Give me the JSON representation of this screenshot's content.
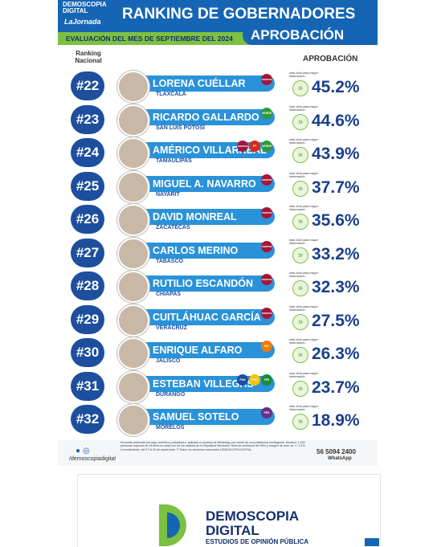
{
  "header": {
    "brand": "DEMOSCOPIA DIGITAL",
    "partner": "LaJornada",
    "title": "RANKING DE GOBERNADORES",
    "subtitle": "EVALUACIÓN DEL MES DE SEPTIEMBRE DEL 2024",
    "metric": "APROBACIÓN"
  },
  "columns": {
    "rank": "Ranking Nacional",
    "approval": "APROBACIÓN"
  },
  "click_hint": "más click para mayor información",
  "rows": [
    {
      "rank": "#22",
      "name": "LORENA CUÉLLAR",
      "state": "TLAXCALA",
      "parties": [
        "morena"
      ],
      "approval": "45.2%"
    },
    {
      "rank": "#23",
      "name": "RICARDO GALLARDO",
      "state": "SAN LUIS POTOSÍ",
      "parties": [
        "VERDE"
      ],
      "approval": "44.6%"
    },
    {
      "rank": "#24",
      "name": "AMÉRICO VILLARREAL",
      "state": "TAMAULIPAS",
      "parties": [
        "morena",
        "PT",
        "VERDE"
      ],
      "approval": "43.9%"
    },
    {
      "rank": "#25",
      "name": "MIGUEL A. NAVARRO",
      "state": "NAYARIT",
      "parties": [
        "morena"
      ],
      "approval": "37.7%"
    },
    {
      "rank": "#26",
      "name": "DAVID MONREAL",
      "state": "ZACATECAS",
      "parties": [
        "morena"
      ],
      "approval": "35.6%"
    },
    {
      "rank": "#27",
      "name": "CARLOS MERINO",
      "state": "TABASCO",
      "parties": [
        "morena"
      ],
      "approval": "33.2%"
    },
    {
      "rank": "#28",
      "name": "RUTILIO ESCANDÓN",
      "state": "CHIAPAS",
      "parties": [
        "morena"
      ],
      "approval": "32.3%"
    },
    {
      "rank": "#29",
      "name": "CUITLÁHUAC GARCÍA",
      "state": "VERACRUZ",
      "parties": [
        "morena"
      ],
      "approval": "27.5%"
    },
    {
      "rank": "#30",
      "name": "ENRIQUE ALFARO",
      "state": "JALISCO",
      "parties": [
        "MC"
      ],
      "approval": "26.3%"
    },
    {
      "rank": "#31",
      "name": "ESTEBAN VILLEGAS",
      "state": "DURANGO",
      "parties": [
        "PAN",
        "PRD",
        "PRI"
      ],
      "approval": "23.7%"
    },
    {
      "rank": "#32",
      "name": "SAMUEL SOTELO",
      "state": "MORELOS",
      "parties": [
        "PES"
      ],
      "approval": "18.9%"
    }
  ],
  "footer": {
    "handle": "/demoscopiadigital",
    "disclaimer": "Encuesta realizada con rigor científico y estadístico, aplicada a usuarios de WhatsApp por medio de una plataforma multiagente. Muestra: 1,000 personas mayores de 18 años en cada uno de los estados de la República Mexicana. Nivel de confianza del 95% y margen de error de +/- 3.1%. Levantamiento: del 27 al 30 de septiembre. © Todos los derechos reservados DEMOSCOPIA DIGITAL.",
    "phone": "56 5094 2400",
    "phone_label": "WhatsApp"
  },
  "logo": {
    "line1": "DEMOSCOPIA",
    "line2": "DIGITAL",
    "tagline": "ESTUDIOS DE OPINIÓN PÚBLICA"
  }
}
